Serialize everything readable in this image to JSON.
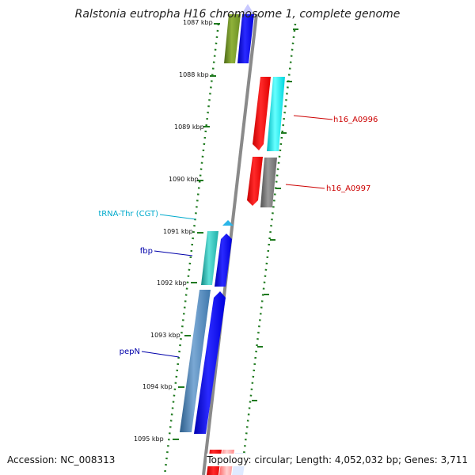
{
  "title": "Ralstonia eutropha H16 chromosome 1, complete genome",
  "footer": {
    "accession": "Accession: NC_008313",
    "stats": "Topology: circular; Length: 4,052,032 bp; Genes: 3,711"
  },
  "colors": {
    "backbone": "#8a8a8a",
    "tick_green": "#1f7a1f",
    "red": "#ff0000",
    "cyan": "#00e5ee",
    "blue": "#0000ee",
    "olive": "#6b8e23",
    "gray": "#707070",
    "teal": "#20b2aa",
    "steelblue": "#4682b4",
    "label_red": "#cc0000",
    "label_blue": "#0000aa",
    "label_cyan": "#00aacc"
  },
  "kbp_ticks": [
    "1087 kbp",
    "1088 kbp",
    "1089 kbp",
    "1090 kbp",
    "1091 kbp",
    "1092 kbp",
    "1093 kbp",
    "1094 kbp",
    "1095 kbp"
  ],
  "gene_labels": [
    {
      "name": "h16_A0996",
      "color": "#cc0000"
    },
    {
      "name": "h16_A0997",
      "color": "#cc0000"
    },
    {
      "name": "tRNA-Thr (CGT)",
      "color": "#00aacc"
    },
    {
      "name": "fbp",
      "color": "#0000aa"
    },
    {
      "name": "pepN",
      "color": "#0000aa"
    }
  ]
}
